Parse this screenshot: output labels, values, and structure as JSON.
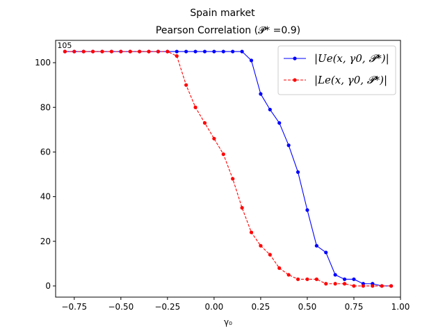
{
  "chart_data": {
    "type": "line",
    "title": "Spain market",
    "subtitle": "Pearson Correlation (𝓟* =0.9)",
    "xlabel": "γ₀",
    "ylabel": "",
    "xlim": [
      -0.85,
      1.0
    ],
    "ylim": [
      -5,
      110
    ],
    "xticks": [
      -0.75,
      -0.5,
      -0.25,
      0.0,
      0.25,
      0.5,
      0.75,
      1.0
    ],
    "xtick_labels": [
      "−0.75",
      "−0.50",
      "−0.25",
      "0.00",
      "0.25",
      "0.50",
      "0.75",
      "1.00"
    ],
    "yticks": [
      0,
      20,
      40,
      60,
      80,
      100
    ],
    "ytick_labels": [
      "0",
      "20",
      "40",
      "60",
      "80",
      "100"
    ],
    "grid": false,
    "legend_position": "top-right",
    "annotation": "105",
    "x": [
      -0.8,
      -0.75,
      -0.7,
      -0.65,
      -0.6,
      -0.55,
      -0.5,
      -0.45,
      -0.4,
      -0.35,
      -0.3,
      -0.25,
      -0.2,
      -0.15,
      -0.1,
      -0.05,
      0.0,
      0.05,
      0.1,
      0.15,
      0.2,
      0.25,
      0.3,
      0.35,
      0.4,
      0.45,
      0.5,
      0.55,
      0.6,
      0.65,
      0.7,
      0.75,
      0.8,
      0.85,
      0.9,
      0.95
    ],
    "series": [
      {
        "name": "|Ue(x, γ0, 𝓟*)|",
        "color": "#0000ff",
        "style": "solid",
        "values": [
          105,
          105,
          105,
          105,
          105,
          105,
          105,
          105,
          105,
          105,
          105,
          105,
          105,
          105,
          105,
          105,
          105,
          105,
          105,
          105,
          101,
          86,
          79,
          73,
          63,
          51,
          34,
          18,
          15,
          5,
          3,
          3,
          1,
          1,
          0,
          0
        ]
      },
      {
        "name": "|Le(x, γ0, 𝓟*)|",
        "color": "#ff0000",
        "style": "dashed",
        "values": [
          105,
          105,
          105,
          105,
          105,
          105,
          105,
          105,
          105,
          105,
          105,
          105,
          103,
          90,
          80,
          73,
          66,
          59,
          48,
          35,
          24,
          18,
          14,
          8,
          5,
          3,
          3,
          3,
          1,
          1,
          1,
          0,
          0,
          0,
          0,
          0
        ]
      }
    ]
  }
}
